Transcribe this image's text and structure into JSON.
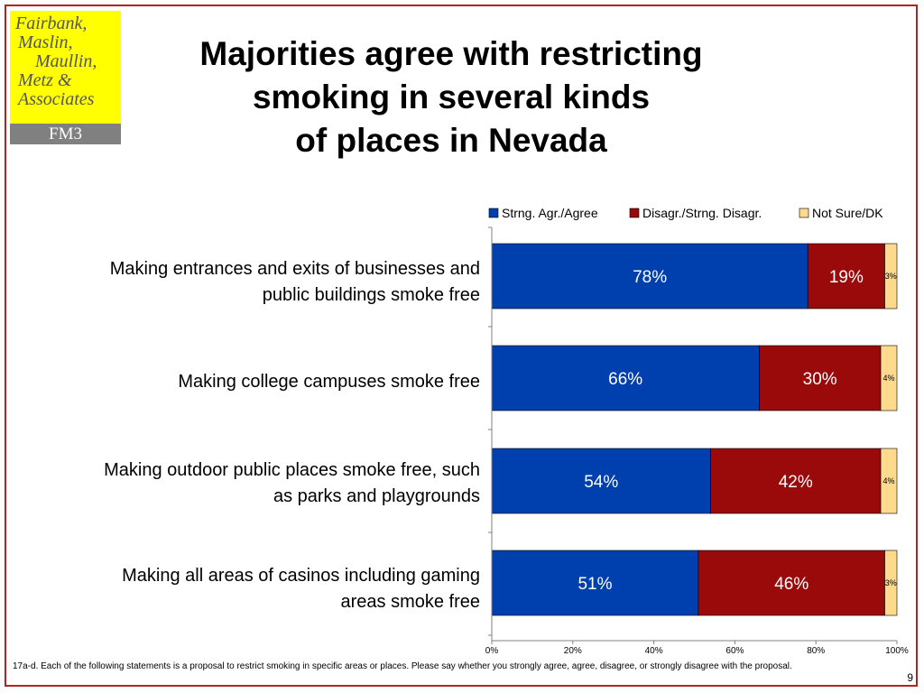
{
  "logo": {
    "lines": [
      "Fairbank,",
      "Maslin,",
      "Maullin,",
      "Metz &",
      "Associates"
    ],
    "band": "FM3"
  },
  "title": {
    "lines": [
      "Majorities agree with restricting",
      "smoking in several kinds",
      "of places in Nevada"
    ]
  },
  "category_labels": [
    [
      "Making entrances and exits of businesses and",
      "public buildings smoke free"
    ],
    [
      "Making college campuses smoke free"
    ],
    [
      "Making outdoor public places smoke free, such",
      "as  parks and playgrounds"
    ],
    [
      "Making all areas of casinos including gaming",
      "areas smoke free"
    ]
  ],
  "chart_data": {
    "type": "bar",
    "orientation": "horizontal",
    "stacked": true,
    "categories": [
      "Making entrances and exits of businesses and public buildings smoke free",
      "Making college campuses smoke free",
      "Making outdoor public places smoke free, such as  parks and playgrounds",
      "Making all areas of casinos including gaming areas smoke free"
    ],
    "series": [
      {
        "name": "Strng. Agr./Agree",
        "values": [
          78,
          66,
          54,
          51
        ],
        "labels": [
          "78%",
          "66%",
          "54%",
          "51%"
        ],
        "color": "#003fae"
      },
      {
        "name": "Disagr./Strng. Disagr.",
        "values": [
          19,
          30,
          42,
          46
        ],
        "labels": [
          "19%",
          "30%",
          "42%",
          "46%"
        ],
        "color": "#9b0a0a"
      },
      {
        "name": "Not Sure/DK",
        "values": [
          3,
          4,
          4,
          3
        ],
        "labels": [
          "3%",
          "4%",
          "4%",
          "3%"
        ],
        "color": "#ffd98c"
      }
    ],
    "xlim": [
      0,
      100
    ],
    "ticks": [
      "0%",
      "20%",
      "40%",
      "60%",
      "80%",
      "100%"
    ],
    "legend": "top",
    "grid": false
  },
  "footnote": "17a-d. Each of the following statements is a proposal to restrict smoking in specific areas or places. Please say whether you strongly agree, agree, disagree, or strongly disagree with the proposal.",
  "page_number": "9"
}
